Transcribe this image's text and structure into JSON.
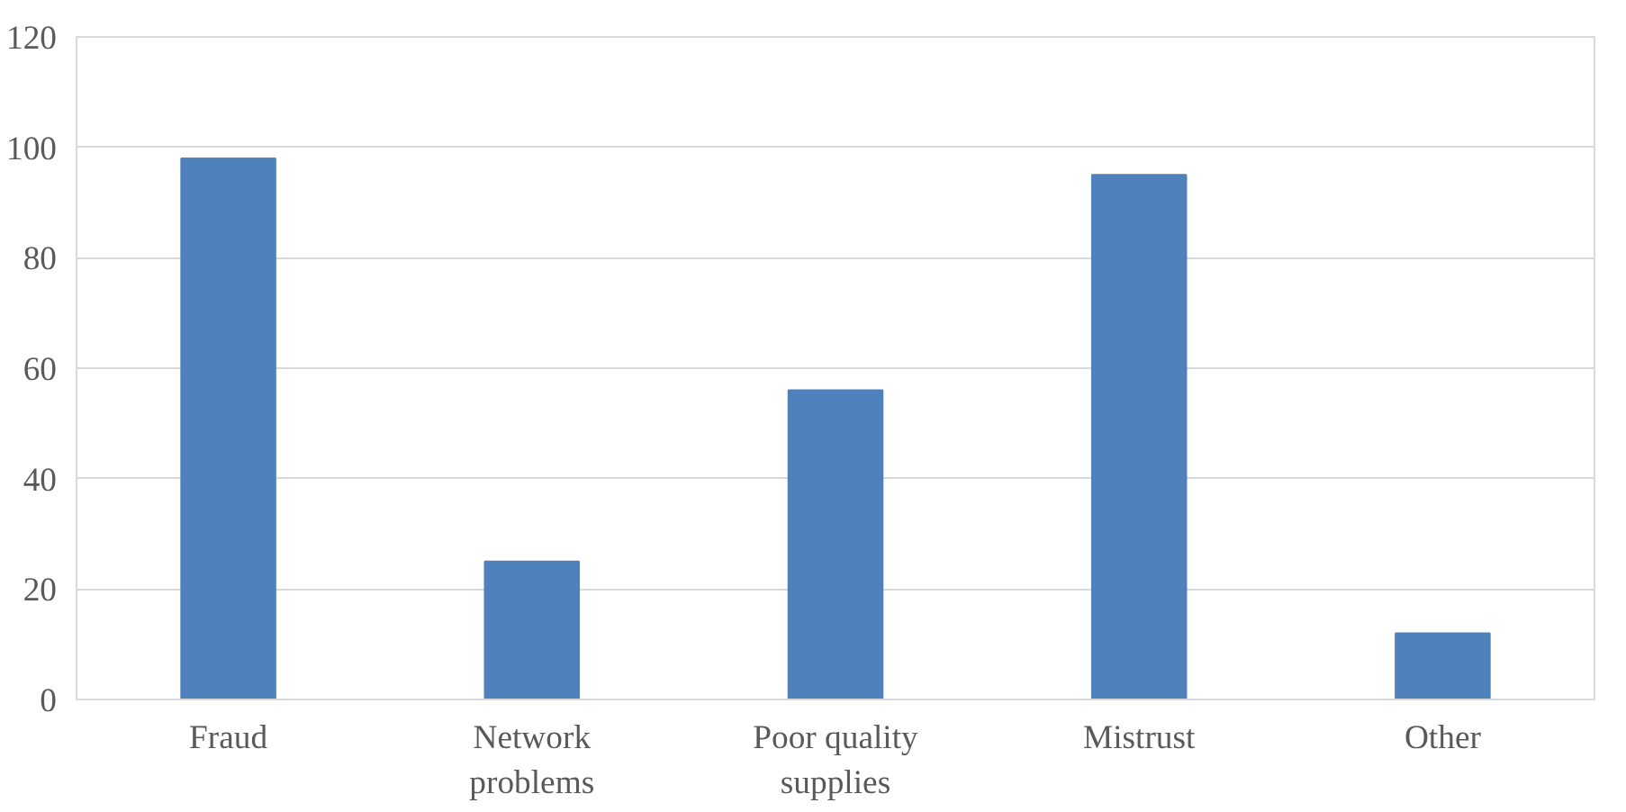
{
  "chart_data": {
    "type": "bar",
    "categories": [
      "Fraud",
      "Network problems",
      "Poor quality supplies",
      "Mistrust",
      "Other"
    ],
    "values": [
      98,
      25,
      56,
      95,
      12
    ],
    "color": "#4f81bd",
    "ylim": [
      0,
      120
    ],
    "yticks": [
      0,
      20,
      40,
      60,
      80,
      100,
      120
    ],
    "grid": "y"
  }
}
